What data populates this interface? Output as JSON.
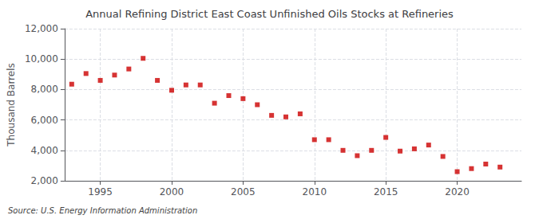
{
  "chart_data": {
    "type": "scatter",
    "title": "Annual Refining District East Coast Unfinished Oils Stocks at Refineries",
    "ylabel": "Thousand Barrels",
    "annotation": "Source: U.S. Energy Information Administration",
    "x": [
      1993,
      1994,
      1995,
      1996,
      1997,
      1998,
      1999,
      2000,
      2001,
      2002,
      2003,
      2004,
      2005,
      2006,
      2007,
      2008,
      2009,
      2010,
      2011,
      2012,
      2013,
      2014,
      2015,
      2016,
      2017,
      2018,
      2019,
      2020,
      2021,
      2022,
      2023
    ],
    "values": [
      8350,
      9050,
      8600,
      8950,
      9350,
      10050,
      8600,
      7950,
      8300,
      8300,
      7100,
      7600,
      7400,
      7000,
      6300,
      6200,
      6400,
      4700,
      4700,
      4000,
      3650,
      4000,
      4850,
      3950,
      4100,
      4350,
      3600,
      2600,
      2800,
      3100,
      2900
    ],
    "color": "#cc0000",
    "marker": "square",
    "xlim": [
      1992.5,
      2024.5
    ],
    "xticks": [
      1995,
      2000,
      2005,
      2010,
      2015,
      2020
    ],
    "ylim": [
      2000,
      12000
    ],
    "yticks": [
      {
        "value": 2000,
        "label": "2,000"
      },
      {
        "value": 4000,
        "label": "4,000"
      },
      {
        "value": 6000,
        "label": "6,000"
      },
      {
        "value": 8000,
        "label": "8,000"
      },
      {
        "value": 10000,
        "label": "10,000"
      },
      {
        "value": 12000,
        "label": "12,000"
      }
    ],
    "grid": true
  }
}
